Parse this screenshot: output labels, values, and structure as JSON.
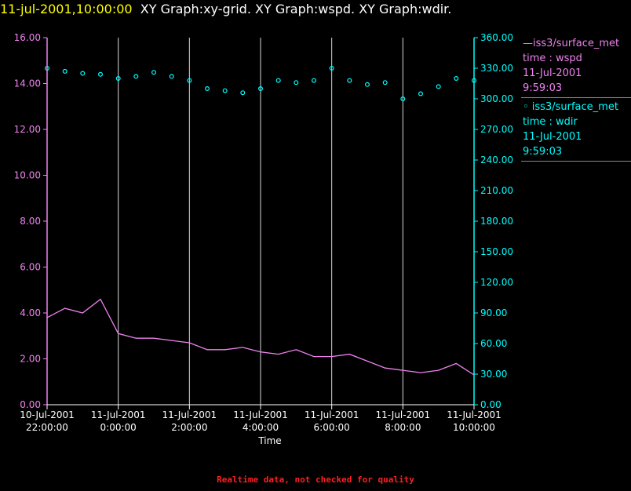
{
  "title": {
    "timestamp": "11-jul-2001,10:00:00",
    "graphs": "XY Graph:xy-grid.  XY Graph:wspd.  XY Graph:wdir."
  },
  "legend": [
    {
      "lines": [
        "—iss3/surface_met",
        "time : wspd",
        "11-Jul-2001",
        "9:59:03"
      ],
      "color": "#ee82ee"
    },
    {
      "lines": [
        "◦ iss3/surface_met",
        "time : wdir",
        "11-Jul-2001",
        "9:59:03"
      ],
      "color": "#00ffff"
    }
  ],
  "footer": "Realtime data, not checked for quality",
  "chart_data": {
    "type": "line",
    "xlabel": "Time",
    "x_range": [
      "2001-07-10T22:00:00",
      "2001-07-11T10:00:00"
    ],
    "x_ticks": [
      {
        "date": "10-Jul-2001",
        "time": "22:00:00"
      },
      {
        "date": "11-Jul-2001",
        "time": "0:00:00"
      },
      {
        "date": "11-Jul-2001",
        "time": "2:00:00"
      },
      {
        "date": "11-Jul-2001",
        "time": "4:00:00"
      },
      {
        "date": "11-Jul-2001",
        "time": "6:00:00"
      },
      {
        "date": "11-Jul-2001",
        "time": "8:00:00"
      },
      {
        "date": "11-Jul-2001",
        "time": "10:00:00"
      }
    ],
    "y_left": {
      "range": [
        0,
        16
      ],
      "ticks": [
        "0.00",
        "2.00",
        "4.00",
        "6.00",
        "8.00",
        "10.00",
        "12.00",
        "14.00",
        "16.00"
      ],
      "color": "#ee82ee"
    },
    "y_right": {
      "range": [
        0,
        360
      ],
      "ticks": [
        "0.00",
        "30.00",
        "60.00",
        "90.00",
        "120.00",
        "150.00",
        "180.00",
        "210.00",
        "240.00",
        "270.00",
        "300.00",
        "330.00",
        "360.00"
      ],
      "color": "#00ffff"
    },
    "grid": "vertical",
    "series": [
      {
        "name": "iss3/surface_met time : wspd",
        "type": "line",
        "axis": "left",
        "color": "#ee82ee",
        "x": [
          "2001-07-10T22:00:00",
          "2001-07-10T22:30:00",
          "2001-07-10T23:00:00",
          "2001-07-10T23:30:00",
          "2001-07-11T00:00:00",
          "2001-07-11T00:30:00",
          "2001-07-11T01:00:00",
          "2001-07-11T01:30:00",
          "2001-07-11T02:00:00",
          "2001-07-11T02:30:00",
          "2001-07-11T03:00:00",
          "2001-07-11T03:30:00",
          "2001-07-11T04:00:00",
          "2001-07-11T04:30:00",
          "2001-07-11T05:00:00",
          "2001-07-11T05:30:00",
          "2001-07-11T06:00:00",
          "2001-07-11T06:30:00",
          "2001-07-11T07:00:00",
          "2001-07-11T07:30:00",
          "2001-07-11T08:00:00",
          "2001-07-11T08:30:00",
          "2001-07-11T09:00:00",
          "2001-07-11T09:30:00",
          "2001-07-11T10:00:00"
        ],
        "values": [
          3.8,
          4.2,
          4.0,
          4.6,
          3.1,
          2.9,
          2.9,
          2.8,
          2.7,
          2.4,
          2.4,
          2.5,
          2.3,
          2.2,
          2.4,
          2.1,
          2.1,
          2.2,
          1.9,
          1.6,
          1.5,
          1.4,
          1.5,
          1.8,
          1.3
        ]
      },
      {
        "name": "iss3/surface_met time : wdir",
        "type": "scatter",
        "axis": "right",
        "color": "#00ffff",
        "x": [
          "2001-07-10T22:00:00",
          "2001-07-10T22:30:00",
          "2001-07-10T23:00:00",
          "2001-07-10T23:30:00",
          "2001-07-11T00:00:00",
          "2001-07-11T00:30:00",
          "2001-07-11T01:00:00",
          "2001-07-11T01:30:00",
          "2001-07-11T02:00:00",
          "2001-07-11T02:30:00",
          "2001-07-11T03:00:00",
          "2001-07-11T03:30:00",
          "2001-07-11T04:00:00",
          "2001-07-11T04:30:00",
          "2001-07-11T05:00:00",
          "2001-07-11T05:30:00",
          "2001-07-11T06:00:00",
          "2001-07-11T06:30:00",
          "2001-07-11T07:00:00",
          "2001-07-11T07:30:00",
          "2001-07-11T08:00:00",
          "2001-07-11T08:30:00",
          "2001-07-11T09:00:00",
          "2001-07-11T09:30:00",
          "2001-07-11T10:00:00"
        ],
        "values": [
          330,
          327,
          325,
          324,
          320,
          322,
          326,
          322,
          318,
          310,
          308,
          306,
          310,
          318,
          316,
          318,
          330,
          318,
          314,
          316,
          300,
          305,
          312,
          320,
          318
        ]
      }
    ]
  }
}
